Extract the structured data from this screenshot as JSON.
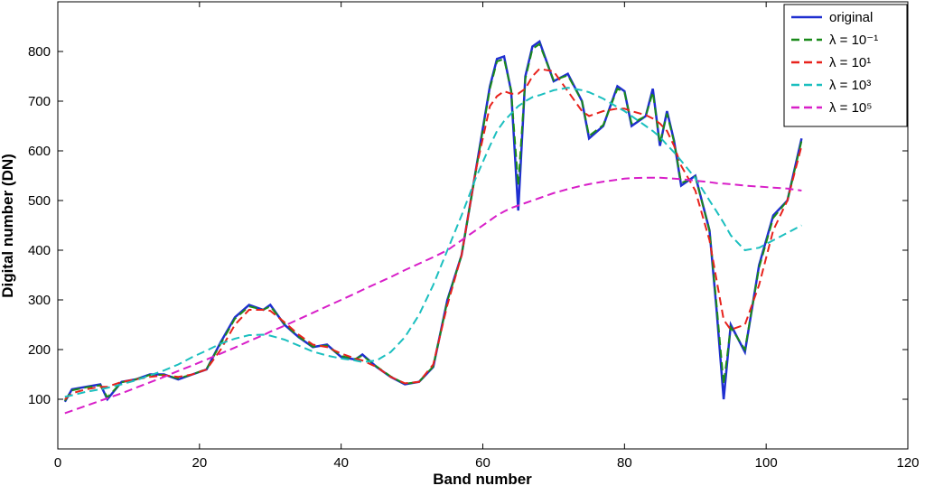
{
  "chart_data": {
    "type": "line",
    "xlabel": "Band number",
    "ylabel": "Digital number (DN)",
    "xlim": [
      0,
      120
    ],
    "xticks": [
      0,
      20,
      40,
      60,
      80,
      100,
      120
    ],
    "ylim": [
      0,
      900
    ],
    "yticks": [
      100,
      200,
      300,
      400,
      500,
      600,
      700,
      800
    ],
    "legend": "upper right",
    "x": [
      1,
      2,
      4,
      6,
      7,
      9,
      11,
      13,
      15,
      17,
      19,
      21,
      23,
      25,
      27,
      29,
      30,
      32,
      34,
      36,
      38,
      40,
      42,
      43,
      45,
      47,
      49,
      51,
      53,
      55,
      57,
      59,
      61,
      62,
      63,
      64,
      65,
      66,
      67,
      68,
      70,
      72,
      74,
      75,
      77,
      79,
      80,
      81,
      83,
      84,
      85,
      86,
      87,
      88,
      90,
      92,
      93,
      94,
      95,
      97,
      99,
      101,
      103,
      105
    ],
    "series": [
      {
        "name": "original",
        "color": "#1f2fd0",
        "dash": false,
        "values": [
          95,
          120,
          125,
          130,
          100,
          135,
          140,
          150,
          150,
          140,
          150,
          160,
          215,
          265,
          290,
          280,
          290,
          250,
          225,
          205,
          210,
          185,
          180,
          190,
          165,
          145,
          130,
          135,
          165,
          300,
          390,
          560,
          730,
          785,
          790,
          720,
          480,
          750,
          810,
          820,
          740,
          755,
          700,
          625,
          650,
          730,
          720,
          650,
          670,
          725,
          610,
          680,
          620,
          530,
          550,
          440,
          280,
          100,
          250,
          195,
          370,
          470,
          500,
          625
        ]
      },
      {
        "name": "λ = 10⁻¹",
        "color": "#1a8a1a",
        "dash": true,
        "values": [
          97,
          118,
          124,
          128,
          104,
          134,
          140,
          149,
          149,
          142,
          150,
          161,
          212,
          262,
          287,
          280,
          287,
          252,
          226,
          206,
          208,
          187,
          181,
          188,
          166,
          146,
          131,
          135,
          166,
          298,
          390,
          558,
          725,
          780,
          785,
          722,
          530,
          745,
          805,
          815,
          742,
          752,
          700,
          630,
          652,
          725,
          718,
          655,
          670,
          718,
          615,
          675,
          618,
          535,
          548,
          440,
          290,
          130,
          245,
          200,
          365,
          465,
          500,
          620
        ]
      },
      {
        "name": "λ = 10¹",
        "color": "#e8221c",
        "dash": true,
        "values": [
          100,
          112,
          120,
          125,
          125,
          135,
          140,
          145,
          148,
          145,
          150,
          160,
          200,
          250,
          280,
          280,
          278,
          255,
          230,
          210,
          205,
          192,
          182,
          178,
          165,
          145,
          132,
          135,
          170,
          290,
          390,
          560,
          690,
          710,
          720,
          715,
          715,
          725,
          750,
          765,
          760,
          720,
          680,
          670,
          680,
          685,
          685,
          680,
          672,
          665,
          655,
          640,
          610,
          570,
          520,
          420,
          340,
          260,
          240,
          250,
          330,
          440,
          500,
          610
        ]
      },
      {
        "name": "λ = 10³",
        "color": "#1bbfbf",
        "dash": true,
        "values": [
          105,
          108,
          115,
          120,
          123,
          130,
          138,
          148,
          158,
          170,
          185,
          198,
          212,
          222,
          229,
          230,
          228,
          220,
          208,
          196,
          188,
          182,
          178,
          175,
          178,
          195,
          225,
          270,
          330,
          400,
          470,
          545,
          610,
          640,
          660,
          675,
          690,
          700,
          708,
          712,
          722,
          727,
          722,
          718,
          705,
          688,
          680,
          670,
          650,
          640,
          628,
          612,
          597,
          580,
          545,
          500,
          478,
          455,
          430,
          400,
          405,
          420,
          435,
          450
        ]
      },
      {
        "name": "λ = 10⁵",
        "color": "#d81fc8",
        "dash": true,
        "values": [
          72,
          77,
          87,
          97,
          102,
          112,
          123,
          134,
          145,
          157,
          168,
          180,
          192,
          204,
          217,
          229,
          236,
          248,
          261,
          274,
          287,
          300,
          313,
          320,
          333,
          346,
          360,
          373,
          386,
          400,
          420,
          440,
          460,
          470,
          478,
          485,
          490,
          495,
          500,
          505,
          515,
          523,
          530,
          533,
          538,
          542,
          544,
          545,
          546,
          546,
          546,
          545,
          544,
          543,
          540,
          537,
          535,
          534,
          533,
          530,
          528,
          526,
          524,
          520
        ]
      }
    ]
  }
}
